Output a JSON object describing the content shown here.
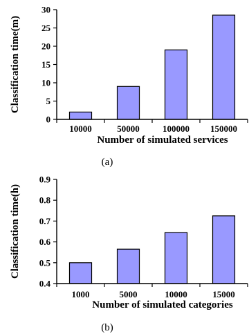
{
  "colors": {
    "bar_fill": "#9999ff",
    "axis": "#000000"
  },
  "chart_data": [
    {
      "type": "bar",
      "panel_label": "(a)",
      "xlabel": "Number of simulated services",
      "ylabel": "Classification time(m)",
      "categories": [
        "10000",
        "50000",
        "100000",
        "150000"
      ],
      "values": [
        2,
        9,
        19,
        28.5
      ],
      "ylim": [
        0,
        30
      ],
      "yticks": [
        "0",
        "5",
        "10",
        "15",
        "20",
        "25",
        "30"
      ],
      "ytick_values": [
        0,
        5,
        10,
        15,
        20,
        25,
        30
      ],
      "grid": false,
      "legend": "none"
    },
    {
      "type": "bar",
      "panel_label": "(b)",
      "xlabel": "Number of simulated categories",
      "ylabel": "Classification time(h)",
      "categories": [
        "1000",
        "5000",
        "10000",
        "15000"
      ],
      "values": [
        0.5,
        0.565,
        0.645,
        0.725
      ],
      "ylim": [
        0.4,
        0.9
      ],
      "yticks": [
        "0.4",
        "0.5",
        "0.6",
        "0.7",
        "0.8",
        "0.9"
      ],
      "ytick_values": [
        0.4,
        0.5,
        0.6,
        0.7,
        0.8,
        0.9
      ],
      "grid": false,
      "legend": "none"
    }
  ]
}
